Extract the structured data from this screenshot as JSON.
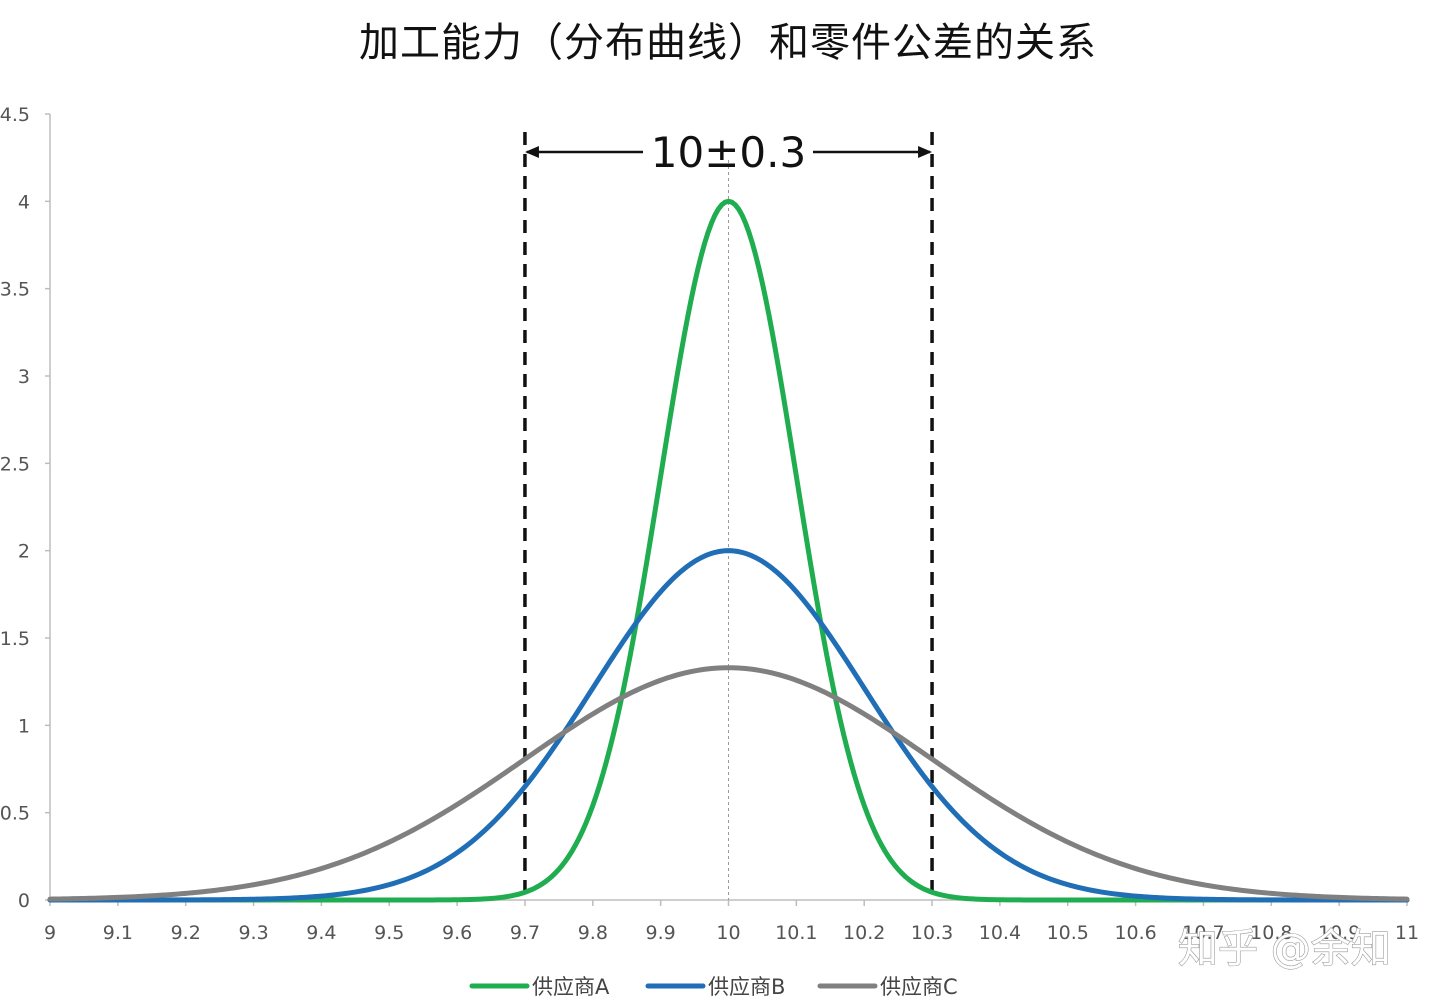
{
  "chart_data": {
    "type": "line",
    "title": "加工能力（分布曲线）和零件公差的关系",
    "x_ticks": [
      "9",
      "9.1",
      "9.2",
      "9.3",
      "9.4",
      "9.5",
      "9.6",
      "9.7",
      "9.8",
      "9.9",
      "10",
      "10.1",
      "10.2",
      "10.3",
      "10.4",
      "10.5",
      "10.6",
      "10.7",
      "10.8",
      "10.9",
      "11"
    ],
    "y_ticks": [
      "0",
      "0.5",
      "1",
      "1.5",
      "2",
      "2.5",
      "3",
      "3.5",
      "4",
      "4.5"
    ],
    "xlim": [
      9,
      11
    ],
    "ylim": [
      0,
      4.5
    ],
    "grid": false,
    "legend_position": "bottom",
    "series": [
      {
        "name": "供应商A",
        "color": "#1fad4f",
        "mean": 10,
        "sigma": 0.1,
        "peak": 4.0
      },
      {
        "name": "供应商B",
        "color": "#1f6eb6",
        "mean": 10,
        "sigma": 0.2,
        "peak": 2.0
      },
      {
        "name": "供应商C",
        "color": "#808080",
        "mean": 10,
        "sigma": 0.3,
        "peak": 1.33
      }
    ],
    "annotations": {
      "spec_label": "10±0.3",
      "nominal": 10,
      "lower_limit": 9.7,
      "upper_limit": 10.3
    }
  },
  "watermark": "知乎 @余知"
}
